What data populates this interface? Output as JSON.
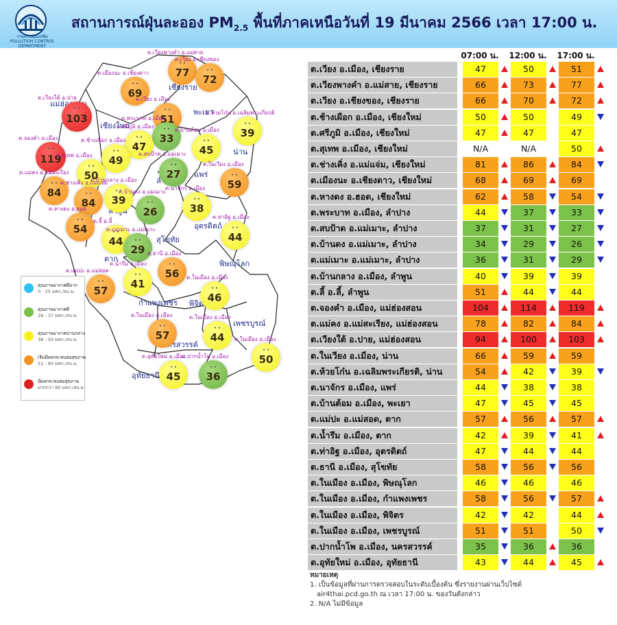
{
  "header": {
    "title_main": "สถานการณ์ฝุ่นละออง PM",
    "title_sub": "2.5",
    "title_rest": " พื้นที่ภาคเหนือวันที่ 19 มีนาคม 2566 เวลา 17:00 น.",
    "logo_text_th": "กรมควบคุมมลพิษ",
    "logo_text_en": "POLLUTION CONTROL DEPARTMENT"
  },
  "colors": {
    "very_good": "#2ec0f0",
    "good": "#7cc24a",
    "moderate": "#ffff1c",
    "unhealthy_start": "#f7a11c",
    "unhealthy": "#ef2b2b",
    "up_arrow": "#e11d1d",
    "down_arrow": "#1f2fb6"
  },
  "legend": [
    {
      "label": "คุณภาพอากาศดีมาก",
      "range": "0 - 25 มคก./ลบ.ม.",
      "color": "#2ec0f0"
    },
    {
      "label": "คุณภาพอากาศดี",
      "range": "26 - 37 มคก./ลบ.ม.",
      "color": "#7cc24a"
    },
    {
      "label": "คุณภาพอากาศปานกลาง",
      "range": "38 - 50 มคก./ลบ.ม.",
      "color": "#f5f21c"
    },
    {
      "label": "เริ่มมีผลกระทบต่อสุขภาพ",
      "range": "51 - 90 มคก./ลบ.ม.",
      "color": "#f3921f"
    },
    {
      "label": "มีผลกระทบต่อสุขภาพ",
      "range": "มากกว่า 90 มคก./ลบ.ม.",
      "color": "#df2020"
    }
  ],
  "map": {
    "provinces": [
      "แม่ฮ่องสอน",
      "เชียงใหม่",
      "เชียงราย",
      "พะเยา",
      "น่าน",
      "ลำปาง",
      "แพร่",
      "ลำพูน",
      "อุตรดิตถ์",
      "สุโขทัย",
      "ตาก",
      "พิษณุโลก",
      "กำแพงเพชร",
      "พิจิตร",
      "เพชรบูรณ์",
      "นครสวรรค์",
      "อุทัยธานี"
    ],
    "stations": [
      {
        "label": "ต.เวียงพางคำ อ.แม่สาย",
        "value": "77",
        "level": "orange"
      },
      {
        "label": "ต.เวียง อ.เชียงของ",
        "value": "72",
        "level": "orange"
      },
      {
        "label": "ต.เมืองนะ อ.เชียงดาว",
        "value": "69",
        "level": "orange"
      },
      {
        "label": "ต.เวียง อ.เมือง",
        "value": "51",
        "level": "orange"
      },
      {
        "label": "ต.เวียงใต้ อ.ปาย",
        "value": "103",
        "level": "red"
      },
      {
        "label": "ต.ห้วยโก๋น อ.เฉลิมพระเกียรติ",
        "value": "39",
        "level": "yellow"
      },
      {
        "label": "ต.พระบาท อ.เมือง",
        "value": "33",
        "level": "green"
      },
      {
        "label": "ต.บ้านต้อม อ.เมือง",
        "value": "45",
        "level": "yellow"
      },
      {
        "label": "ต.จองคำ อ.เมือง",
        "value": "119",
        "level": "red"
      },
      {
        "label": "ต.ศรีภูมิ อ.เมือง",
        "value": "47",
        "level": "yellow"
      },
      {
        "label": "ต.ช้างเผือก อ.เมือง",
        "value": "49",
        "level": "yellow"
      },
      {
        "label": "ต.สุเทพ อ.เมือง",
        "value": "50",
        "level": "yellow"
      },
      {
        "label": "ต.สบป้าด อ.แม่เมาะ",
        "value": "27",
        "level": "green"
      },
      {
        "label": "ต.ในเวียง อ.เมือง",
        "value": "59",
        "level": "orange"
      },
      {
        "label": "ต.แม่คง อ.แม่สะเรียง",
        "value": "84",
        "level": "orange"
      },
      {
        "label": "ต.ช่างเคิ่ง อ.แม่แจ่ม",
        "value": "84",
        "level": "orange"
      },
      {
        "label": "ต.บ้านกลาง อ.เมือง",
        "value": "39",
        "level": "yellow"
      },
      {
        "label": "ต.บ้านดง อ.แม่เมาะ",
        "value": "26",
        "level": "green"
      },
      {
        "label": "ต.นาจักร อ.เมือง",
        "value": "38",
        "level": "yellow"
      },
      {
        "label": "ต.หางดง อ.ฮอด",
        "value": "54",
        "level": "orange"
      },
      {
        "label": "ต.ลี้ อ.ลี้",
        "value": "44",
        "level": "yellow"
      },
      {
        "label": "ต.แม่เมาะ อ.แม่เมาะ",
        "value": "29",
        "level": "green"
      },
      {
        "label": "ต.ท่าอิฐ อ.เมือง",
        "value": "44",
        "level": "yellow"
      },
      {
        "label": "ต.แม่ปะ อ.แม่สอด",
        "value": "57",
        "level": "orange"
      },
      {
        "label": "ต.น้ำรึม อ.เมือง",
        "value": "41",
        "level": "yellow"
      },
      {
        "label": "ต.ธานี อ.เมือง",
        "value": "56",
        "level": "orange"
      },
      {
        "label": "ต.ในเมือง อ.เมือง",
        "value": "46",
        "level": "yellow"
      },
      {
        "label": "ต.ในเมือง อ.เมือง",
        "value": "57",
        "level": "orange"
      },
      {
        "label": "ต.ในเมือง อ.เมือง",
        "value": "44",
        "level": "yellow"
      },
      {
        "label": "ต.ในเมือง อ.เมือง",
        "value": "50",
        "level": "yellow"
      },
      {
        "label": "ต.อุทัยใหม่ อ.เมือง",
        "value": "45",
        "level": "yellow"
      },
      {
        "label": "ต.ปากน้ำโพ อ.เมือง",
        "value": "36",
        "level": "green"
      }
    ]
  },
  "table": {
    "headers": [
      "07:00 น.",
      "12:00 น.",
      "17:00 น."
    ],
    "rows": [
      {
        "name": "ต.เวียง อ.เมือง, เชียงราย",
        "v": [
          "47",
          "50",
          "51"
        ],
        "c": [
          "y",
          "y",
          "o"
        ],
        "a": [
          "up",
          "up",
          "up"
        ]
      },
      {
        "name": "ต.เวียงพางคำ อ.แม่สาย, เชียงราย",
        "v": [
          "66",
          "73",
          "77"
        ],
        "c": [
          "o",
          "o",
          "o"
        ],
        "a": [
          "up",
          "up",
          "up"
        ]
      },
      {
        "name": "ต.เวียง อ.เชียงของ, เชียงราย",
        "v": [
          "66",
          "70",
          "72"
        ],
        "c": [
          "o",
          "o",
          "o"
        ],
        "a": [
          "up",
          "up",
          "up"
        ]
      },
      {
        "name": "ต.ช้างเผือก อ.เมือง, เชียงใหม่",
        "v": [
          "50",
          "50",
          "49"
        ],
        "c": [
          "y",
          "y",
          "y"
        ],
        "a": [
          "up",
          "",
          "down"
        ]
      },
      {
        "name": "ต.ศรีภูมิ อ.เมือง, เชียงใหม่",
        "v": [
          "47",
          "47",
          "47"
        ],
        "c": [
          "y",
          "y",
          "y"
        ],
        "a": [
          "up",
          "",
          ""
        ]
      },
      {
        "name": "ต.สุเทพ อ.เมือง, เชียงใหม่",
        "v": [
          "N/A",
          "N/A",
          "50"
        ],
        "c": [
          "n",
          "n",
          "y"
        ],
        "a": [
          "",
          "",
          "up"
        ]
      },
      {
        "name": "ต.ช่างเคิ่ง อ.แม่แจ่ม, เชียงใหม่",
        "v": [
          "81",
          "86",
          "84"
        ],
        "c": [
          "o",
          "o",
          "o"
        ],
        "a": [
          "up",
          "up",
          "down"
        ]
      },
      {
        "name": "ต.เมืองนะ อ.เชียงดาว, เชียงใหม่",
        "v": [
          "68",
          "69",
          "69"
        ],
        "c": [
          "o",
          "o",
          "o"
        ],
        "a": [
          "up",
          "up",
          ""
        ]
      },
      {
        "name": "ต.หางดง อ.ฮอด, เชียงใหม่",
        "v": [
          "62",
          "58",
          "54"
        ],
        "c": [
          "o",
          "o",
          "o"
        ],
        "a": [
          "up",
          "down",
          "down"
        ]
      },
      {
        "name": "ต.พระบาท อ.เมือง, ลำปาง",
        "v": [
          "44",
          "37",
          "33"
        ],
        "c": [
          "y",
          "g",
          "g"
        ],
        "a": [
          "down",
          "down",
          "down"
        ]
      },
      {
        "name": "ต.สบป้าด อ.แม่เมาะ, ลำปาง",
        "v": [
          "37",
          "31",
          "27"
        ],
        "c": [
          "g",
          "g",
          "g"
        ],
        "a": [
          "down",
          "down",
          "down"
        ]
      },
      {
        "name": "ต.บ้านดง อ.แม่เมาะ, ลำปาง",
        "v": [
          "34",
          "29",
          "26"
        ],
        "c": [
          "g",
          "g",
          "g"
        ],
        "a": [
          "down",
          "down",
          "down"
        ]
      },
      {
        "name": "ต.แม่เมาะ อ.แม่เมาะ, ลำปาง",
        "v": [
          "36",
          "31",
          "29"
        ],
        "c": [
          "g",
          "g",
          "g"
        ],
        "a": [
          "down",
          "down",
          "down"
        ]
      },
      {
        "name": "ต.บ้านกลาง อ.เมือง, ลำพูน",
        "v": [
          "40",
          "39",
          "39"
        ],
        "c": [
          "y",
          "y",
          "y"
        ],
        "a": [
          "down",
          "down",
          ""
        ]
      },
      {
        "name": "ต.ลี้ อ.ลี้, ลำพูน",
        "v": [
          "51",
          "44",
          "44"
        ],
        "c": [
          "o",
          "y",
          "y"
        ],
        "a": [
          "up",
          "down",
          ""
        ]
      },
      {
        "name": "ต.จองคำ อ.เมือง, แม่ฮ่องสอน",
        "v": [
          "104",
          "114",
          "119"
        ],
        "c": [
          "r",
          "r",
          "r"
        ],
        "a": [
          "up",
          "up",
          "up"
        ]
      },
      {
        "name": "ต.แม่คง อ.แม่สะเรียง, แม่ฮ่องสอน",
        "v": [
          "78",
          "82",
          "84"
        ],
        "c": [
          "o",
          "o",
          "o"
        ],
        "a": [
          "up",
          "up",
          "up"
        ]
      },
      {
        "name": "ต.เวียงใต้ อ.ปาย, แม่ฮ่องสอน",
        "v": [
          "94",
          "100",
          "103"
        ],
        "c": [
          "r",
          "r",
          "r"
        ],
        "a": [
          "up",
          "up",
          "up"
        ]
      },
      {
        "name": "ต.ในเวียง อ.เมือง, น่าน",
        "v": [
          "66",
          "59",
          "59"
        ],
        "c": [
          "o",
          "o",
          "o"
        ],
        "a": [
          "up",
          "up",
          ""
        ]
      },
      {
        "name": "ต.ห้วยโก๋น อ.เฉลิมพระเกียรติ, น่าน",
        "v": [
          "54",
          "42",
          "39"
        ],
        "c": [
          "o",
          "y",
          "y"
        ],
        "a": [
          "up",
          "down",
          "down"
        ]
      },
      {
        "name": "ต.นาจักร อ.เมือง, แพร่",
        "v": [
          "44",
          "38",
          "38"
        ],
        "c": [
          "y",
          "y",
          "y"
        ],
        "a": [
          "down",
          "down",
          ""
        ]
      },
      {
        "name": "ต.บ้านต้อม อ.เมือง, พะเยา",
        "v": [
          "47",
          "45",
          "45"
        ],
        "c": [
          "y",
          "y",
          "y"
        ],
        "a": [
          "down",
          "down",
          ""
        ]
      },
      {
        "name": "ต.แม่ปะ อ.แม่สอด, ตาก",
        "v": [
          "57",
          "56",
          "57"
        ],
        "c": [
          "o",
          "o",
          "o"
        ],
        "a": [
          "up",
          "up",
          "up"
        ]
      },
      {
        "name": "ต.น้ำรึม อ.เมือง, ตาก",
        "v": [
          "42",
          "39",
          "41"
        ],
        "c": [
          "y",
          "y",
          "y"
        ],
        "a": [
          "up",
          "down",
          "up"
        ]
      },
      {
        "name": "ต.ท่าอิฐ อ.เมือง, อุตรดิตถ์",
        "v": [
          "47",
          "44",
          "44"
        ],
        "c": [
          "y",
          "y",
          "y"
        ],
        "a": [
          "down",
          "down",
          ""
        ]
      },
      {
        "name": "ต.ธานี อ.เมือง, สุโขทัย",
        "v": [
          "58",
          "56",
          "56"
        ],
        "c": [
          "o",
          "o",
          "o"
        ],
        "a": [
          "down",
          "down",
          ""
        ]
      },
      {
        "name": "ต.ในเมือง อ.เมือง, พิษณุโลก",
        "v": [
          "46",
          "46",
          "46"
        ],
        "c": [
          "y",
          "y",
          "y"
        ],
        "a": [
          "down",
          "",
          ""
        ]
      },
      {
        "name": "ต.ในเมือง อ.เมือง, กำแพงเพชร",
        "v": [
          "58",
          "56",
          "57"
        ],
        "c": [
          "o",
          "o",
          "o"
        ],
        "a": [
          "down",
          "down",
          "up"
        ]
      },
      {
        "name": "ต.ในเมือง อ.เมือง, พิจิตร",
        "v": [
          "42",
          "42",
          "44"
        ],
        "c": [
          "y",
          "y",
          "y"
        ],
        "a": [
          "down",
          "",
          "up"
        ]
      },
      {
        "name": "ต.ในเมือง อ.เมือง, เพชรบูรณ์",
        "v": [
          "51",
          "51",
          "50"
        ],
        "c": [
          "o",
          "o",
          "y"
        ],
        "a": [
          "down",
          "",
          "down"
        ]
      },
      {
        "name": "ต.ปากน้ำโพ อ.เมือง, นครสวรรค์",
        "v": [
          "35",
          "36",
          "36"
        ],
        "c": [
          "g",
          "g",
          "g"
        ],
        "a": [
          "down",
          "up",
          ""
        ]
      },
      {
        "name": "ต.อุทัยใหม่ อ.เมือง, อุทัยธานี",
        "v": [
          "43",
          "44",
          "45"
        ],
        "c": [
          "y",
          "y",
          "y"
        ],
        "a": [
          "down",
          "up",
          "up"
        ]
      }
    ]
  },
  "notes": {
    "title": "หมายเหตุ",
    "line1": "1. เป็นข้อมูลที่ผ่านการตรวจสอบในระดับเบื้องต้น ซึ่งรายงานผ่านเว็บไซต์",
    "line1b": "air4thai.pcd.go.th ณ เวลา 17:00 น. ของวันดังกล่าว",
    "line2": "2. N/A ไม่มีข้อมูล"
  }
}
